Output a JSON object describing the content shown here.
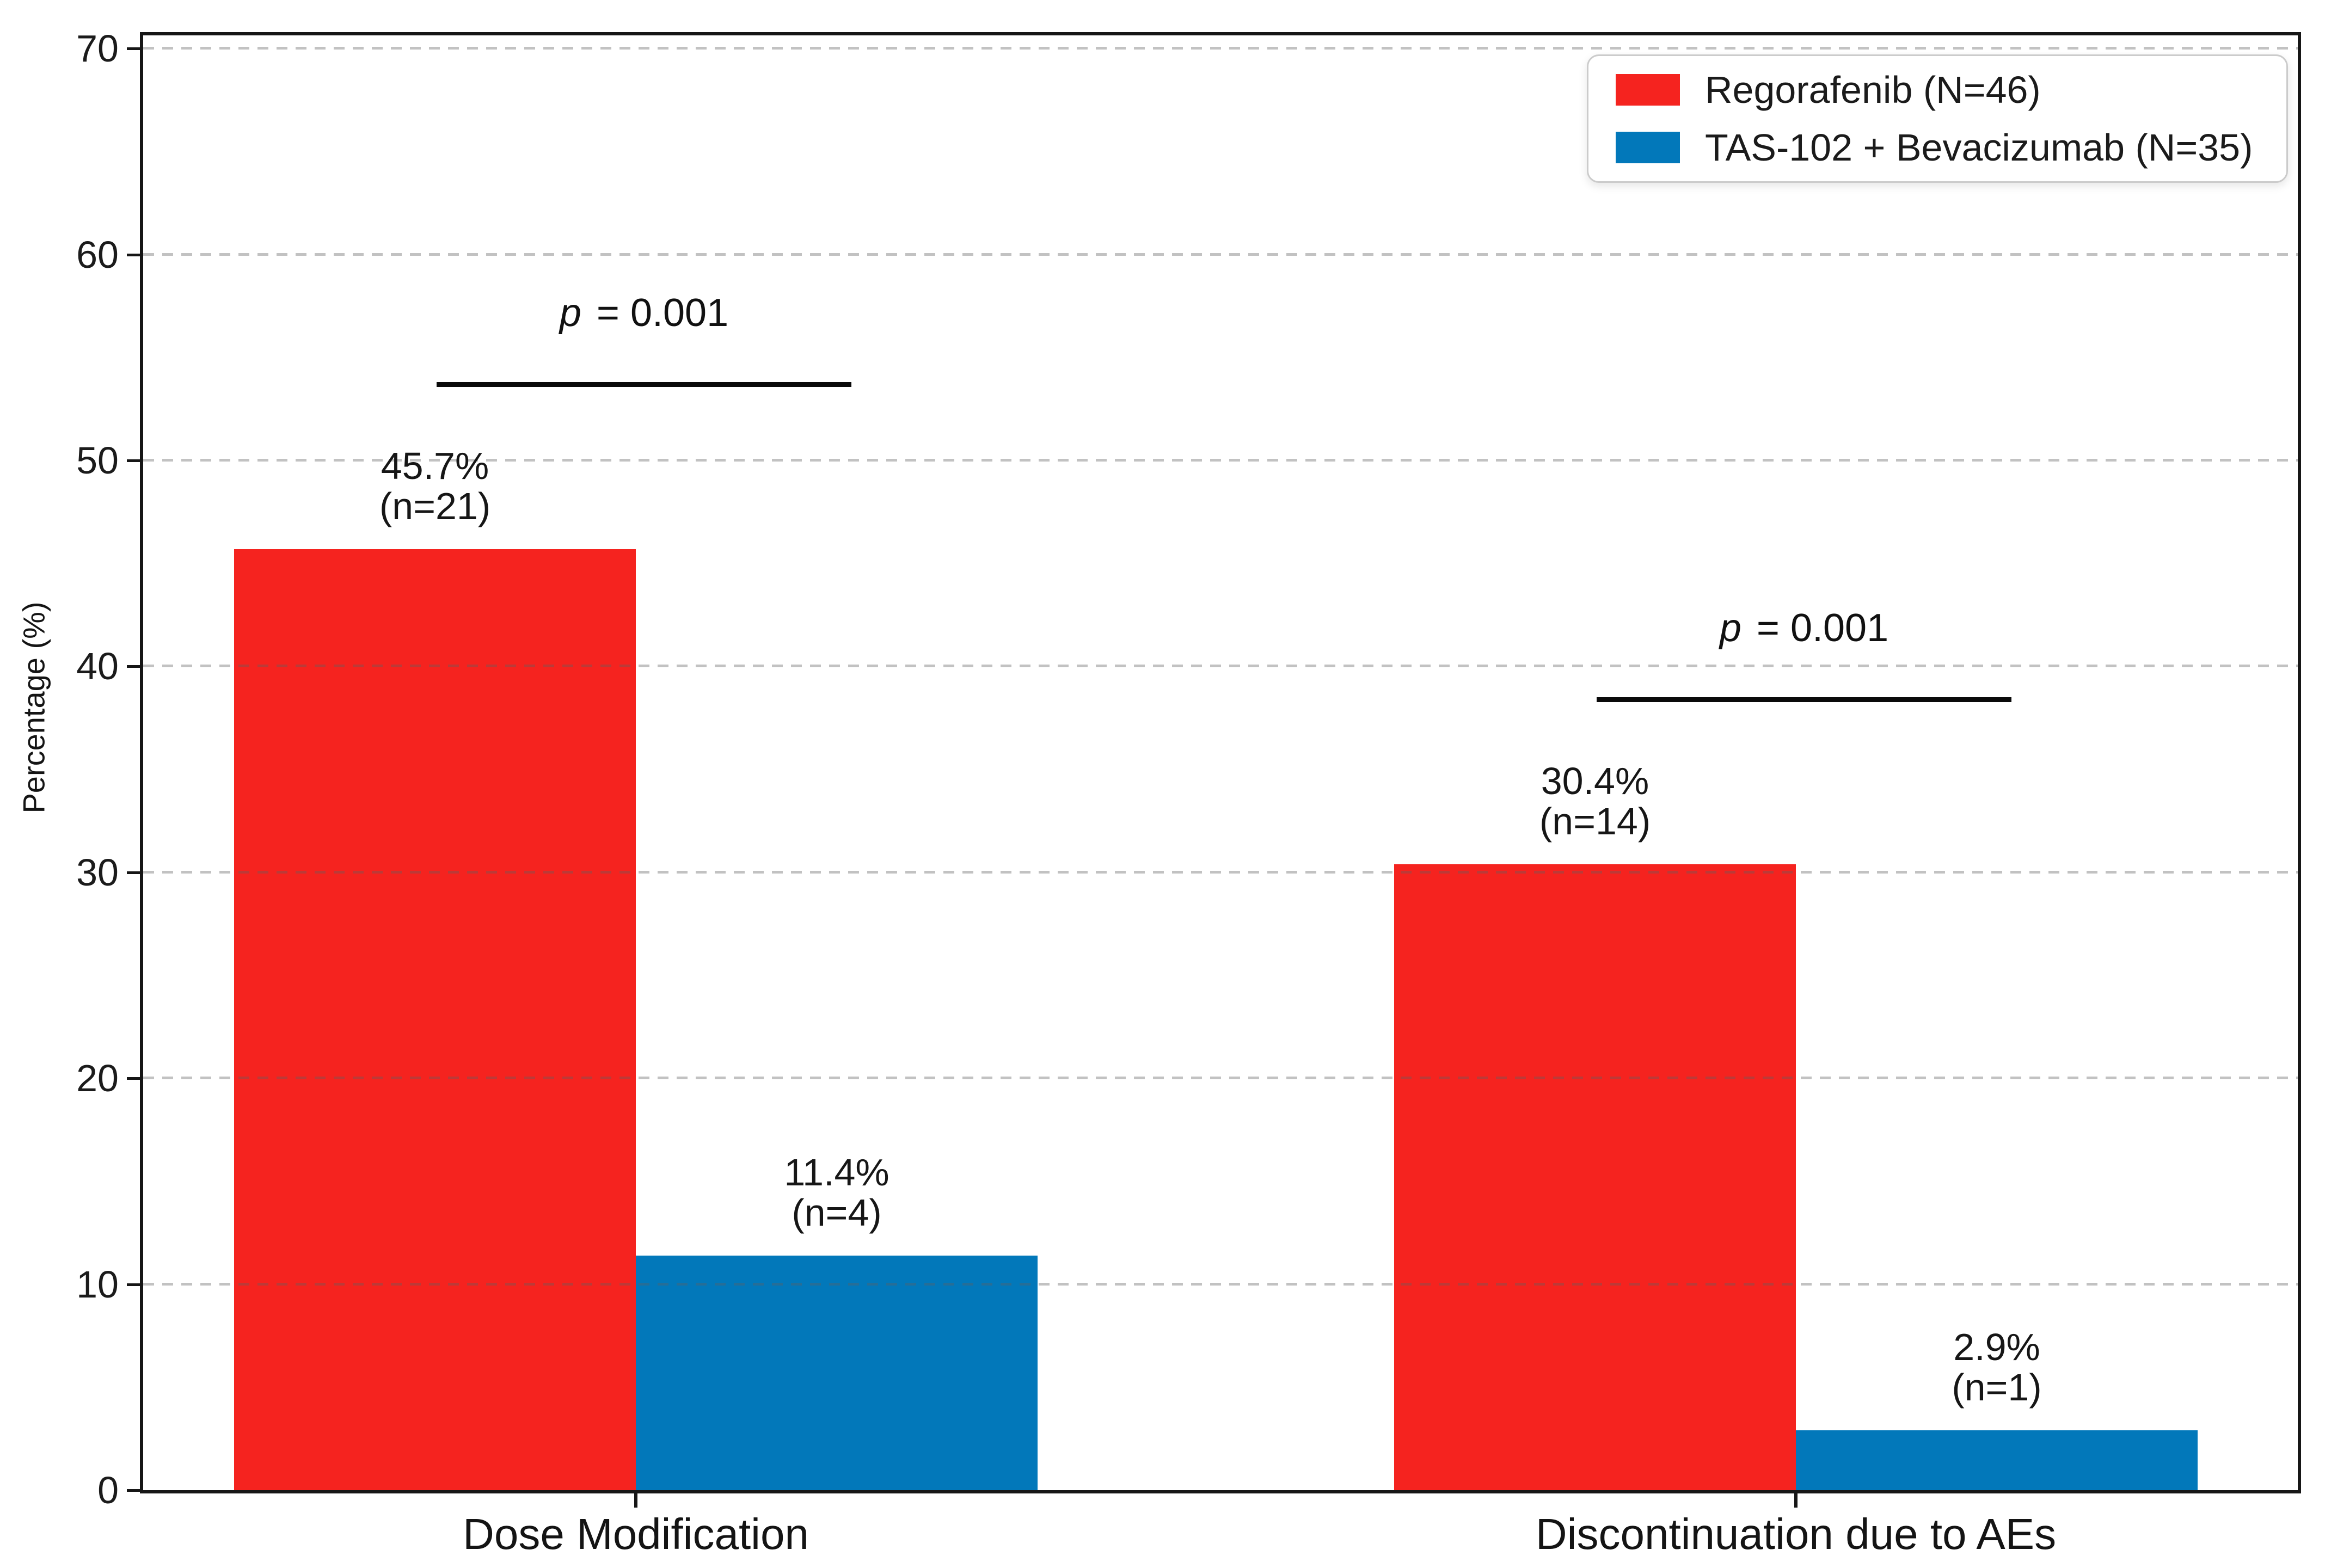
{
  "chart_data": {
    "type": "bar",
    "categories": [
      "Dose Modification",
      "Discontinuation due to AEs"
    ],
    "series": [
      {
        "name": "Regorafenib (N=46)",
        "color": "#f5231f",
        "values": [
          45.7,
          30.4
        ],
        "counts": [
          21,
          14
        ],
        "value_labels": [
          "45.7%",
          "30.4%"
        ],
        "n_labels": [
          "(n=21)",
          "(n=14)"
        ]
      },
      {
        "name": "TAS-102 + Bevacizumab (N=35)",
        "color": "#0278ba",
        "values": [
          11.4,
          2.9
        ],
        "counts": [
          4,
          1
        ],
        "value_labels": [
          "11.4%",
          "2.9%"
        ],
        "n_labels": [
          "(n=4)",
          "(n=1)"
        ]
      }
    ],
    "annotations": [
      {
        "text": "p = 0.001",
        "italic_part": "p",
        "rest_part": " = 0.001",
        "category_index": 0,
        "line_y_pct": 53.8
      },
      {
        "text": "p = 0.001",
        "italic_part": "p",
        "rest_part": " = 0.001",
        "category_index": 1,
        "line_y_pct": 38.5
      }
    ],
    "title": "",
    "xlabel": "",
    "ylabel": "Percentage (%)",
    "yticks": [
      0,
      10,
      20,
      30,
      40,
      50,
      60,
      70
    ],
    "ytick_labels": [
      "0",
      "10",
      "20",
      "30",
      "40",
      "50",
      "60",
      "70"
    ],
    "ylim": [
      0,
      70.6
    ],
    "grid": "horizontal-dashed-above-bars",
    "legend_position": "upper-right",
    "axis_color": "#161616",
    "grid_color": "#c9c9c9"
  }
}
